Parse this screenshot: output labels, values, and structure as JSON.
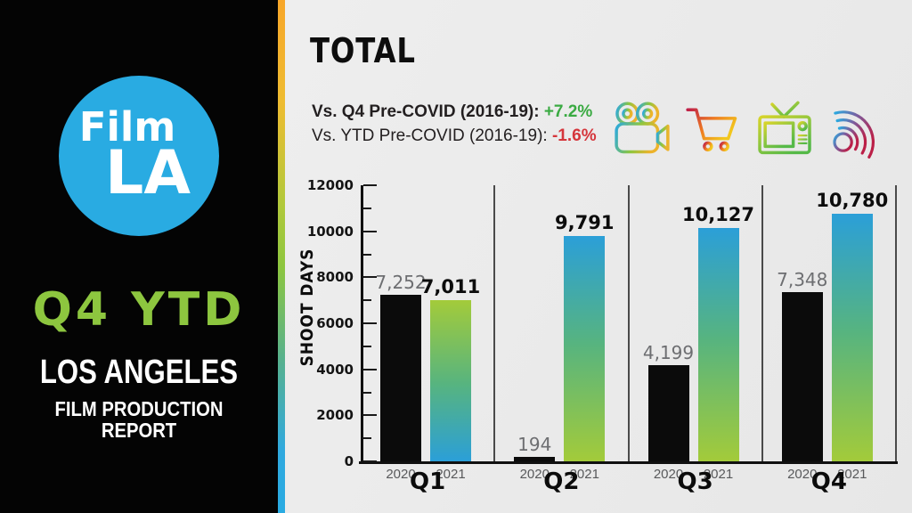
{
  "sidebar": {
    "logo_line1": "Film",
    "logo_line2": "LA",
    "title": "Q4 YTD",
    "region": "LOS ANGELES",
    "tagline": "FILM PRODUCTION REPORT"
  },
  "header": {
    "title": "TOTAL",
    "comparisons": [
      {
        "label": "Vs. Q4 Pre-COVID (2016-19):",
        "value": "+7.2%",
        "trend": "positive"
      },
      {
        "label": "Vs. YTD Pre-COVID (2016-19):",
        "value": "-1.6%",
        "trend": "negative"
      }
    ]
  },
  "icons": [
    {
      "name": "movie-camera-icon"
    },
    {
      "name": "shopping-cart-icon"
    },
    {
      "name": "television-icon"
    },
    {
      "name": "wireless-signal-icon"
    }
  ],
  "chart_data": {
    "type": "bar",
    "title": "TOTAL",
    "ylabel": "SHOOT DAYS",
    "ylim": [
      0,
      12000
    ],
    "ytick_major_step": 2000,
    "ytick_minor_step": 1000,
    "grid": false,
    "legend_position": "below-bars-per-group",
    "categories": [
      "Q1",
      "Q2",
      "Q3",
      "Q4"
    ],
    "series": [
      {
        "name": "2020",
        "values": [
          7252,
          194,
          4199,
          7348
        ]
      },
      {
        "name": "2021",
        "values": [
          7011,
          9791,
          10127,
          10780
        ]
      }
    ],
    "value_labels_2020": [
      "7,252",
      "194",
      "4,199",
      "7,348"
    ],
    "value_labels_2021": [
      "7,011",
      "9,791",
      "10,127",
      "10,780"
    ],
    "bar_gradient_direction_2021": [
      "green-to-blue",
      "blue-to-green",
      "blue-to-green",
      "blue-to-green"
    ]
  },
  "colors": {
    "accent_blue": "#29abe2",
    "accent_green": "#8dc63f",
    "bar_2020": "#0b0b0b",
    "bar_green": "#a3cb3a",
    "bar_teal_mid": "#57b47f",
    "bar_blue": "#2b9fd8",
    "positive": "#3aaa42",
    "negative": "#d5353b",
    "label_gray": "#6d6e71"
  }
}
